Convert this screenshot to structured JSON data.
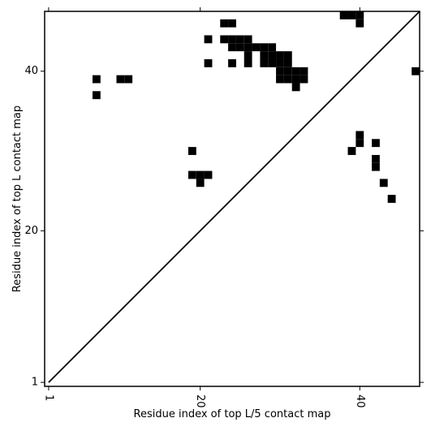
{
  "chart_data": {
    "type": "heatmap",
    "title": "",
    "xlabel": "Residue index of top L/5 contact map",
    "ylabel": "Residue index of top L contact map",
    "xlim": [
      0.5,
      47.5
    ],
    "ylim": [
      0.5,
      47.5
    ],
    "x_ticks": [
      1,
      20,
      40
    ],
    "y_ticks": [
      1,
      20,
      40
    ],
    "x_tick_rotation": -90,
    "grid": false,
    "diagonal_line": true,
    "cell_color": "#000000",
    "line_color": "#000000",
    "cells": [
      [
        7,
        39
      ],
      [
        10,
        39
      ],
      [
        11,
        39
      ],
      [
        7,
        37
      ],
      [
        19,
        30
      ],
      [
        19,
        27
      ],
      [
        20,
        27
      ],
      [
        21,
        27
      ],
      [
        20,
        26
      ],
      [
        21,
        44
      ],
      [
        21,
        41
      ],
      [
        23,
        46
      ],
      [
        24,
        46
      ],
      [
        23,
        44
      ],
      [
        24,
        44
      ],
      [
        25,
        44
      ],
      [
        26,
        44
      ],
      [
        24,
        43
      ],
      [
        25,
        43
      ],
      [
        26,
        43
      ],
      [
        27,
        43
      ],
      [
        28,
        43
      ],
      [
        29,
        43
      ],
      [
        26,
        42
      ],
      [
        28,
        42
      ],
      [
        29,
        42
      ],
      [
        30,
        42
      ],
      [
        31,
        42
      ],
      [
        24,
        41
      ],
      [
        26,
        41
      ],
      [
        28,
        41
      ],
      [
        29,
        41
      ],
      [
        30,
        41
      ],
      [
        31,
        41
      ],
      [
        30,
        40
      ],
      [
        31,
        40
      ],
      [
        32,
        40
      ],
      [
        33,
        40
      ],
      [
        30,
        39
      ],
      [
        31,
        39
      ],
      [
        32,
        39
      ],
      [
        33,
        39
      ],
      [
        32,
        38
      ],
      [
        38,
        47
      ],
      [
        39,
        47
      ],
      [
        40,
        47
      ],
      [
        40,
        46
      ],
      [
        47,
        40
      ],
      [
        40,
        32
      ],
      [
        40,
        31
      ],
      [
        42,
        31
      ],
      [
        39,
        30
      ],
      [
        42,
        29
      ],
      [
        42,
        28
      ],
      [
        43,
        26
      ],
      [
        44,
        24
      ]
    ]
  }
}
